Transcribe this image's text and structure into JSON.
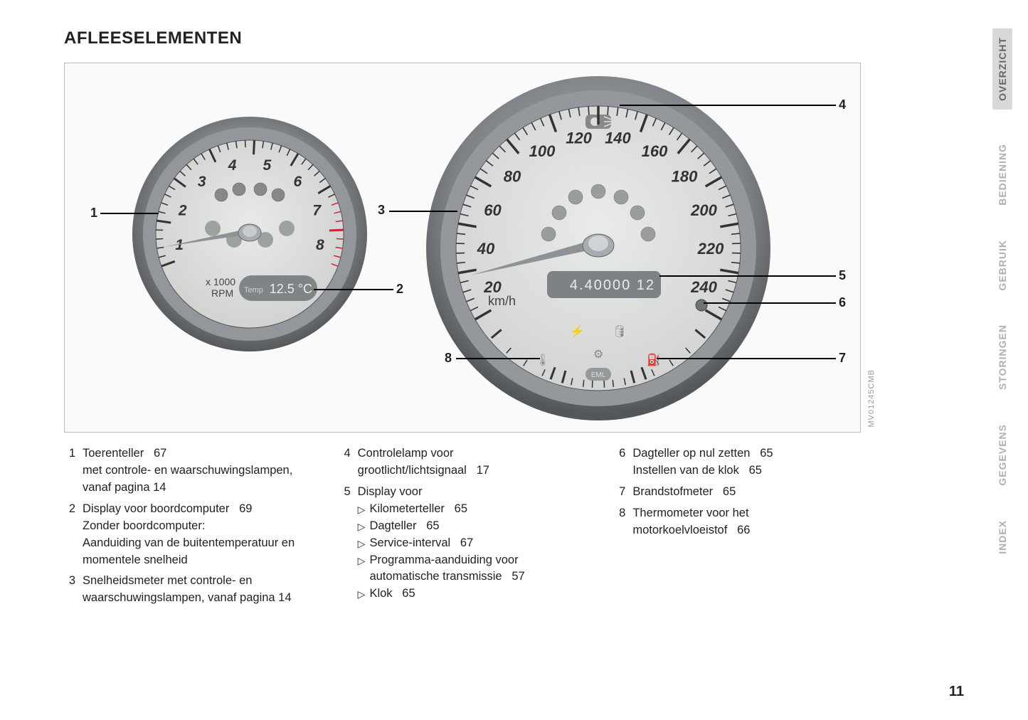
{
  "title": "AFLEESELEMENTEN",
  "image_code": "MV01245CMB",
  "page_number": "11",
  "tacho": {
    "numbers": [
      "1",
      "2",
      "3",
      "4",
      "5",
      "6",
      "7",
      "8"
    ],
    "unit_line1": "x 1000",
    "unit_line2": "RPM",
    "lcd_label": "Temp",
    "lcd_value": "12.5 °C",
    "ring_outer": "#6b6f73",
    "ring_inner": "#8a8e92",
    "face": "#dadcdb",
    "lcd_bg": "#7f8487",
    "lcd_text": "#e2e6e4"
  },
  "speedo": {
    "numbers": [
      "20",
      "40",
      "60",
      "80",
      "100",
      "120",
      "140",
      "160",
      "180",
      "200",
      "220",
      "240"
    ],
    "unit": "km/h",
    "odometer": "4.400001 2",
    "ring_outer": "#6a6e72",
    "ring_inner": "#8c9094",
    "face": "#dcdedd",
    "lcd_bg": "#7c8285",
    "lcd_text": "#e2e6e4"
  },
  "callouts": {
    "c1": "1",
    "c2": "2",
    "c3": "3",
    "c4": "4",
    "c5": "5",
    "c6": "6",
    "c7": "7",
    "c8": "8"
  },
  "legend": {
    "col1": [
      {
        "num": "1",
        "lines": [
          "Toerenteller   67",
          "met controle- en waarschuwingslampen, vanaf pagina 14"
        ]
      },
      {
        "num": "2",
        "lines": [
          "Display voor boordcomputer   69",
          "Zonder boordcomputer:",
          "Aanduiding van de buitentemperatuur en momentele snelheid"
        ]
      },
      {
        "num": "3",
        "lines": [
          "Snelheidsmeter met controle- en waarschuwingslampen, vanaf pagina 14"
        ]
      }
    ],
    "col2": [
      {
        "num": "4",
        "lines": [
          "Controlelamp voor grootlicht/lichtsignaal   17"
        ]
      },
      {
        "num": "5",
        "lines": [
          "Display voor"
        ],
        "subs": [
          "Kilometerteller   65",
          "Dagteller   65",
          "Service-interval   67",
          "Programma-aanduiding voor automatische transmissie   57",
          "Klok   65"
        ]
      }
    ],
    "col3": [
      {
        "num": "6",
        "lines": [
          "Dagteller op nul zetten   65",
          "Instellen van de klok   65"
        ]
      },
      {
        "num": "7",
        "lines": [
          "Brandstofmeter   65"
        ]
      },
      {
        "num": "8",
        "lines": [
          "Thermometer voor het motorkoelvloeistof   66"
        ]
      }
    ]
  },
  "tabs": {
    "t1": "OVERZICHT",
    "t2": "BEDIENING",
    "t3": "GEBRUIK",
    "t4": "STORINGEN",
    "t5": "GEGEVENS",
    "t6": "INDEX"
  }
}
